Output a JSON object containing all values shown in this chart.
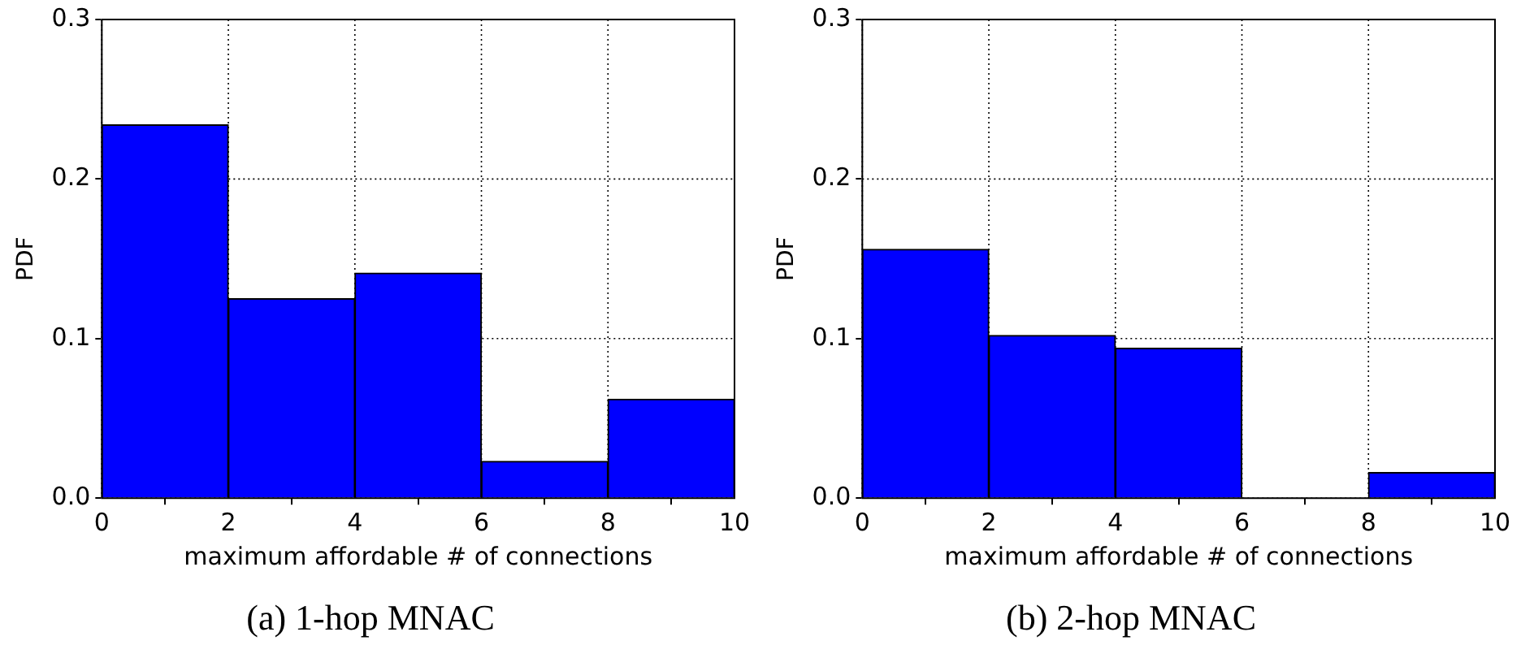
{
  "chart_data": [
    {
      "type": "histogram",
      "title": "(a) 1-hop MNAC",
      "xlabel": "maximum affordable # of connections",
      "ylabel": "PDF",
      "bins": [
        0,
        2,
        4,
        6,
        8,
        10
      ],
      "values": [
        0.234,
        0.125,
        0.141,
        0.023,
        0.062
      ],
      "color": "#0000ff",
      "xlim": [
        0,
        10
      ],
      "xticks": [
        0,
        2,
        4,
        6,
        8,
        10
      ],
      "ylim": [
        0,
        0.3
      ],
      "yticks": [
        {
          "value": 0,
          "label": "0.0"
        },
        0.1,
        0.2,
        0.3
      ],
      "grid": true
    },
    {
      "type": "histogram",
      "title": "(b) 2-hop MNAC",
      "xlabel": "maximum affordable # of connections",
      "ylabel": "PDF",
      "bins": [
        0,
        2,
        4,
        6,
        8,
        10
      ],
      "values": [
        0.156,
        0.102,
        0.094,
        0,
        0.016
      ],
      "color": "#0000ff",
      "xlim": [
        0,
        10
      ],
      "xticks": [
        0,
        2,
        4,
        6,
        8,
        10
      ],
      "ylim": [
        0,
        0.3
      ],
      "yticks": [
        {
          "value": 0,
          "label": "0.0"
        },
        0.1,
        0.2,
        0.3
      ],
      "grid": true
    }
  ]
}
